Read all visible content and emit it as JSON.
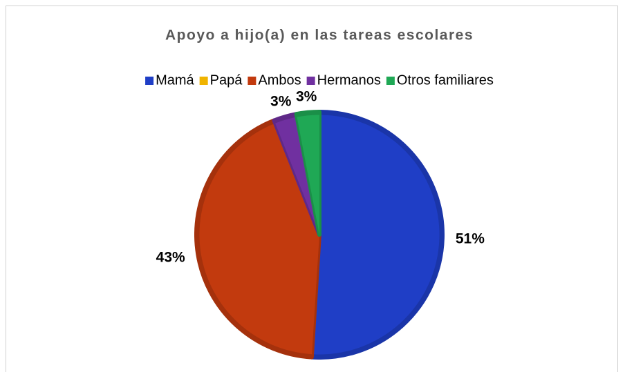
{
  "chart_data": {
    "type": "pie",
    "title": "Apoyo a hijo(a) en las tareas escolares",
    "categories": [
      "Mamá",
      "Papá",
      "Ambos",
      "Hermanos",
      "Otros familiares"
    ],
    "values": [
      51,
      0,
      43,
      3,
      3
    ],
    "value_labels": [
      "51%",
      null,
      "43%",
      "3%",
      "3%"
    ],
    "colors": [
      "#1f3ec6",
      "#f0b400",
      "#c23a0e",
      "#7030a0",
      "#1fa855"
    ],
    "legend": "top"
  }
}
